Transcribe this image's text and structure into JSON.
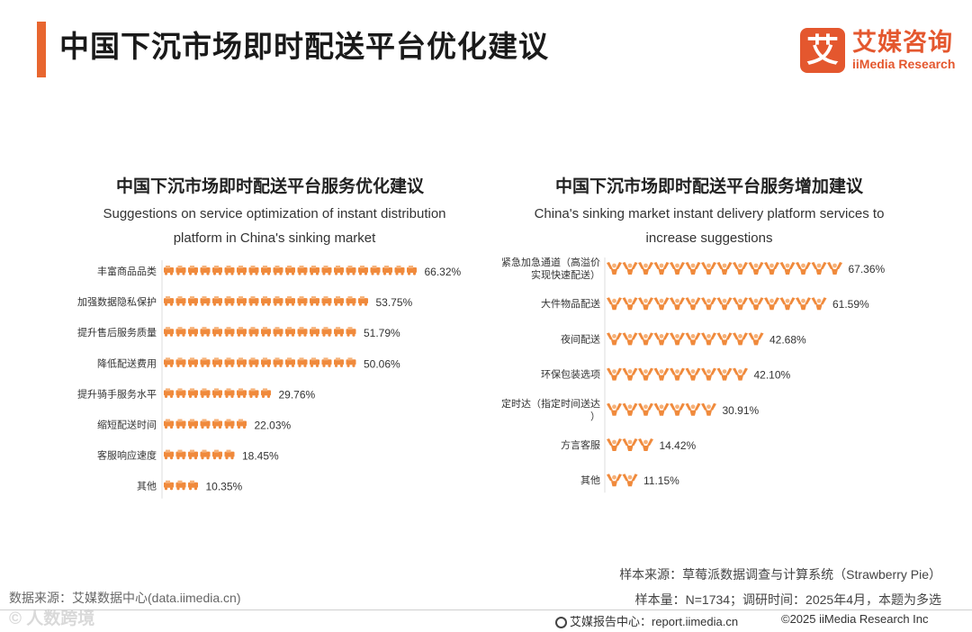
{
  "header": {
    "title": "中国下沉市场即时配送平台优化建议",
    "brand_mark": "艾",
    "brand_cn": "艾媒咨询",
    "brand_en": "iiMedia Research"
  },
  "colors": {
    "accent": "#e8662f",
    "icon": "#f08a3c",
    "icon_light": "#f6b27a"
  },
  "chart_data": [
    {
      "type": "bar",
      "title": "中国下沉市场即时配送平台服务优化建议",
      "subtitle": "Suggestions on service optimization of instant distribution platform in China's sinking market",
      "categories": [
        "丰富商品品类",
        "加强数据隐私保护",
        "提升售后服务质量",
        "降低配送费用",
        "提升骑手服务水平",
        "缩短配送时间",
        "客服响应速度",
        "其他"
      ],
      "values": [
        66.32,
        53.75,
        51.79,
        50.06,
        29.76,
        22.03,
        18.45,
        10.35
      ],
      "value_labels": [
        "66.32%",
        "53.75%",
        "51.79%",
        "50.06%",
        "29.76%",
        "22.03%",
        "18.45%",
        "10.35%"
      ],
      "mark": "delivery-vehicle-icon",
      "orientation": "horizontal"
    },
    {
      "type": "bar",
      "title": "中国下沉市场即时配送平台服务增加建议",
      "subtitle": "China's sinking market instant delivery platform services to increase suggestions",
      "categories": [
        "紧急加急通道（高溢价实现快速配送）",
        "大件物品配送",
        "夜间配送",
        "环保包装选项",
        "定时达（指定时间送达）",
        "方言客服",
        "其他"
      ],
      "values": [
        67.36,
        61.59,
        42.68,
        42.1,
        30.91,
        14.42,
        11.15
      ],
      "value_labels": [
        "67.36%",
        "61.59%",
        "42.68%",
        "42.10%",
        "30.91%",
        "14.42%",
        "11.15%"
      ],
      "mark": "raised-hands-icon",
      "orientation": "horizontal"
    }
  ],
  "notes": {
    "sample_source": "样本来源：草莓派数据调查与计算系统（Strawberry Pie）",
    "sample_size": "样本量：N=1734；调研时间：2025年4月，本题为多选"
  },
  "footer": {
    "data_source": "数据来源：艾媒数据中心(data.iimedia.cn)",
    "watermark": "© 人数跨境",
    "report": "艾媒报告中心：report.iimedia.cn",
    "copyright": "©2025  iiMedia Research  Inc"
  }
}
